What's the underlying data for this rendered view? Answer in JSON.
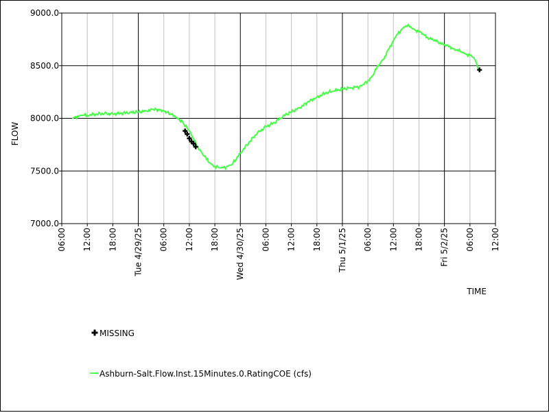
{
  "colors": {
    "series": "#44ff44",
    "missing": "#000000",
    "grid_major": "#000000",
    "grid_minor": "#c0c0c0",
    "background": "#ffffff"
  },
  "chart_data": {
    "type": "line",
    "title": "",
    "xlabel": "TIME",
    "ylabel": "FLOW",
    "ylim": [
      7000,
      9000
    ],
    "xlim": [
      "2025-04-28T06:00",
      "2025-05-02T12:00"
    ],
    "y_ticks": [
      "7000.0",
      "7500.0",
      "8000.0",
      "8500.0",
      "9000.0"
    ],
    "x_ticks": [
      {
        "t": "2025-04-28T06:00",
        "label": "06:00"
      },
      {
        "t": "2025-04-28T12:00",
        "label": "12:00"
      },
      {
        "t": "2025-04-28T18:00",
        "label": "18:00"
      },
      {
        "t": "2025-04-29T00:00",
        "label": "Tue 4/29/25"
      },
      {
        "t": "2025-04-29T06:00",
        "label": "06:00"
      },
      {
        "t": "2025-04-29T12:00",
        "label": "12:00"
      },
      {
        "t": "2025-04-29T18:00",
        "label": "18:00"
      },
      {
        "t": "2025-04-30T00:00",
        "label": "Wed 4/30/25"
      },
      {
        "t": "2025-04-30T06:00",
        "label": "06:00"
      },
      {
        "t": "2025-04-30T12:00",
        "label": "12:00"
      },
      {
        "t": "2025-04-30T18:00",
        "label": "18:00"
      },
      {
        "t": "2025-05-01T00:00",
        "label": "Thu 5/1/25"
      },
      {
        "t": "2025-05-01T06:00",
        "label": "06:00"
      },
      {
        "t": "2025-05-01T12:00",
        "label": "12:00"
      },
      {
        "t": "2025-05-01T18:00",
        "label": "18:00"
      },
      {
        "t": "2025-05-02T00:00",
        "label": "Fri 5/2/25"
      },
      {
        "t": "2025-05-02T06:00",
        "label": "06:00"
      },
      {
        "t": "2025-05-02T12:00",
        "label": "12:00"
      }
    ],
    "grid": true,
    "legend": "bottom-left",
    "series": [
      {
        "name": "Ashburn-Salt.Flow.Inst.15Minutes.0.RatingCOE (cfs)",
        "x": [
          "2025-04-28T08:30",
          "2025-04-28T09:00",
          "2025-04-28T10:00",
          "2025-04-28T11:00",
          "2025-04-28T12:00",
          "2025-04-28T14:00",
          "2025-04-28T16:00",
          "2025-04-28T18:00",
          "2025-04-28T20:00",
          "2025-04-28T22:00",
          "2025-04-29T00:00",
          "2025-04-29T02:00",
          "2025-04-29T03:30",
          "2025-04-29T05:00",
          "2025-04-29T06:00",
          "2025-04-29T07:30",
          "2025-04-29T09:00",
          "2025-04-29T10:30",
          "2025-04-29T12:00",
          "2025-04-29T13:00",
          "2025-04-29T14:00",
          "2025-04-29T15:00",
          "2025-04-29T16:00",
          "2025-04-29T17:00",
          "2025-04-29T18:00",
          "2025-04-29T19:00",
          "2025-04-29T20:00",
          "2025-04-29T21:00",
          "2025-04-29T22:00",
          "2025-04-30T00:00",
          "2025-04-30T02:00",
          "2025-04-30T04:00",
          "2025-04-30T06:00",
          "2025-04-30T08:00",
          "2025-04-30T10:00",
          "2025-04-30T12:00",
          "2025-04-30T14:00",
          "2025-04-30T16:00",
          "2025-04-30T18:00",
          "2025-04-30T20:00",
          "2025-04-30T22:00",
          "2025-05-01T00:00",
          "2025-05-01T02:00",
          "2025-05-01T04:00",
          "2025-05-01T05:00",
          "2025-05-01T06:00",
          "2025-05-01T07:00",
          "2025-05-01T08:00",
          "2025-05-01T09:00",
          "2025-05-01T10:00",
          "2025-05-01T12:00",
          "2025-05-01T13:00",
          "2025-05-01T14:00",
          "2025-05-01T15:00",
          "2025-05-01T16:00",
          "2025-05-01T17:00",
          "2025-05-01T18:00",
          "2025-05-01T19:00",
          "2025-05-01T20:00",
          "2025-05-01T21:00",
          "2025-05-01T22:00",
          "2025-05-01T23:00",
          "2025-05-02T00:00",
          "2025-05-02T01:00",
          "2025-05-02T02:00",
          "2025-05-02T03:00",
          "2025-05-02T04:00",
          "2025-05-02T05:00",
          "2025-05-02T06:00",
          "2025-05-02T07:00",
          "2025-05-02T07:45",
          "2025-05-02T08:15"
        ],
        "y": [
          8000,
          8010,
          8020,
          8030,
          8030,
          8040,
          8045,
          8040,
          8050,
          8055,
          8060,
          8070,
          8085,
          8080,
          8070,
          8040,
          8010,
          7960,
          7880,
          7800,
          7730,
          7670,
          7610,
          7570,
          7545,
          7530,
          7530,
          7545,
          7560,
          7670,
          7770,
          7860,
          7920,
          7960,
          8020,
          8060,
          8100,
          8160,
          8200,
          8240,
          8260,
          8280,
          8290,
          8300,
          8320,
          8360,
          8400,
          8470,
          8530,
          8590,
          8740,
          8800,
          8850,
          8880,
          8870,
          8840,
          8820,
          8800,
          8770,
          8750,
          8730,
          8720,
          8700,
          8680,
          8660,
          8650,
          8630,
          8610,
          8600,
          8570,
          8490,
          8460
        ]
      }
    ],
    "missing": {
      "name": "MISSING",
      "points": [
        {
          "x": "2025-04-29T11:00",
          "y": 7880
        },
        {
          "x": "2025-04-29T11:30",
          "y": 7850
        },
        {
          "x": "2025-04-29T12:00",
          "y": 7810
        },
        {
          "x": "2025-04-29T12:30",
          "y": 7780
        },
        {
          "x": "2025-04-29T13:00",
          "y": 7760
        },
        {
          "x": "2025-04-29T13:30",
          "y": 7730
        },
        {
          "x": "2025-05-02T08:15",
          "y": 8460
        }
      ]
    }
  }
}
